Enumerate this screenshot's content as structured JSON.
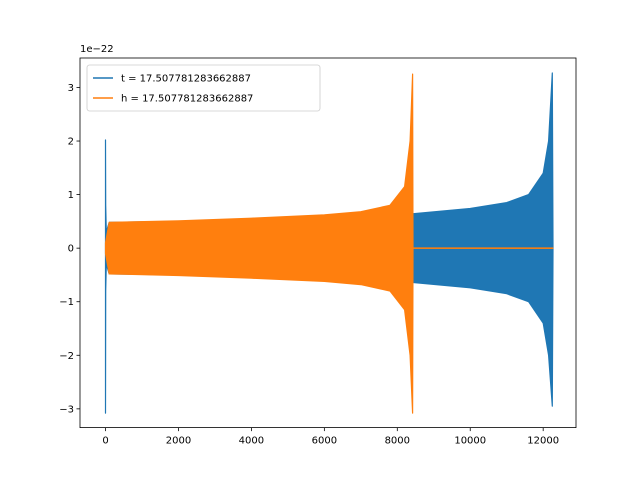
{
  "chart_data": {
    "type": "line",
    "title": "",
    "xlabel": "",
    "ylabel": "",
    "y_offset_label": "1e−22",
    "xlim": [
      -700,
      12900
    ],
    "ylim": [
      -3.35,
      3.55
    ],
    "grid": false,
    "legend_position": "upper-left",
    "x_ticks": [
      {
        "value": 0,
        "label": "0"
      },
      {
        "value": 2000,
        "label": "2000"
      },
      {
        "value": 4000,
        "label": "4000"
      },
      {
        "value": 6000,
        "label": "6000"
      },
      {
        "value": 8000,
        "label": "8000"
      },
      {
        "value": 10000,
        "label": "10000"
      },
      {
        "value": 12000,
        "label": "12000"
      }
    ],
    "y_ticks": [
      {
        "value": -3,
        "label": "−3"
      },
      {
        "value": -2,
        "label": "−2"
      },
      {
        "value": -1,
        "label": "−1"
      },
      {
        "value": 0,
        "label": "0"
      },
      {
        "value": 1,
        "label": "1"
      },
      {
        "value": 2,
        "label": "2"
      },
      {
        "value": 3,
        "label": "3"
      }
    ],
    "series": [
      {
        "name": "t = 17.507781283662887",
        "color": "#1f77b4",
        "x": [
          0,
          5,
          20,
          100,
          2000,
          4000,
          6000,
          8000,
          8400,
          10000,
          11000,
          11600,
          12000,
          12150,
          12250,
          12270
        ],
        "envelope_upper": [
          2.02,
          0.8,
          0.3,
          0.48,
          0.5,
          0.53,
          0.57,
          0.62,
          0.64,
          0.74,
          0.85,
          1.0,
          1.4,
          2.0,
          3.27,
          0.0
        ],
        "envelope_lower": [
          -3.08,
          -0.8,
          -0.3,
          -0.48,
          -0.5,
          -0.53,
          -0.57,
          -0.62,
          -0.64,
          -0.74,
          -0.85,
          -1.0,
          -1.4,
          -2.0,
          -2.95,
          0.0
        ]
      },
      {
        "name": "h = 17.507781283662887",
        "color": "#ff7f0e",
        "x": [
          0,
          100,
          2000,
          4000,
          6000,
          7000,
          7800,
          8200,
          8350,
          8420,
          8430,
          12270
        ],
        "envelope_upper": [
          0.1,
          0.48,
          0.51,
          0.56,
          0.62,
          0.68,
          0.8,
          1.15,
          2.0,
          3.25,
          0.0,
          0.0
        ],
        "envelope_lower": [
          -0.1,
          -0.48,
          -0.51,
          -0.56,
          -0.62,
          -0.68,
          -0.8,
          -1.15,
          -2.0,
          -3.08,
          0.0,
          0.0
        ]
      }
    ]
  }
}
